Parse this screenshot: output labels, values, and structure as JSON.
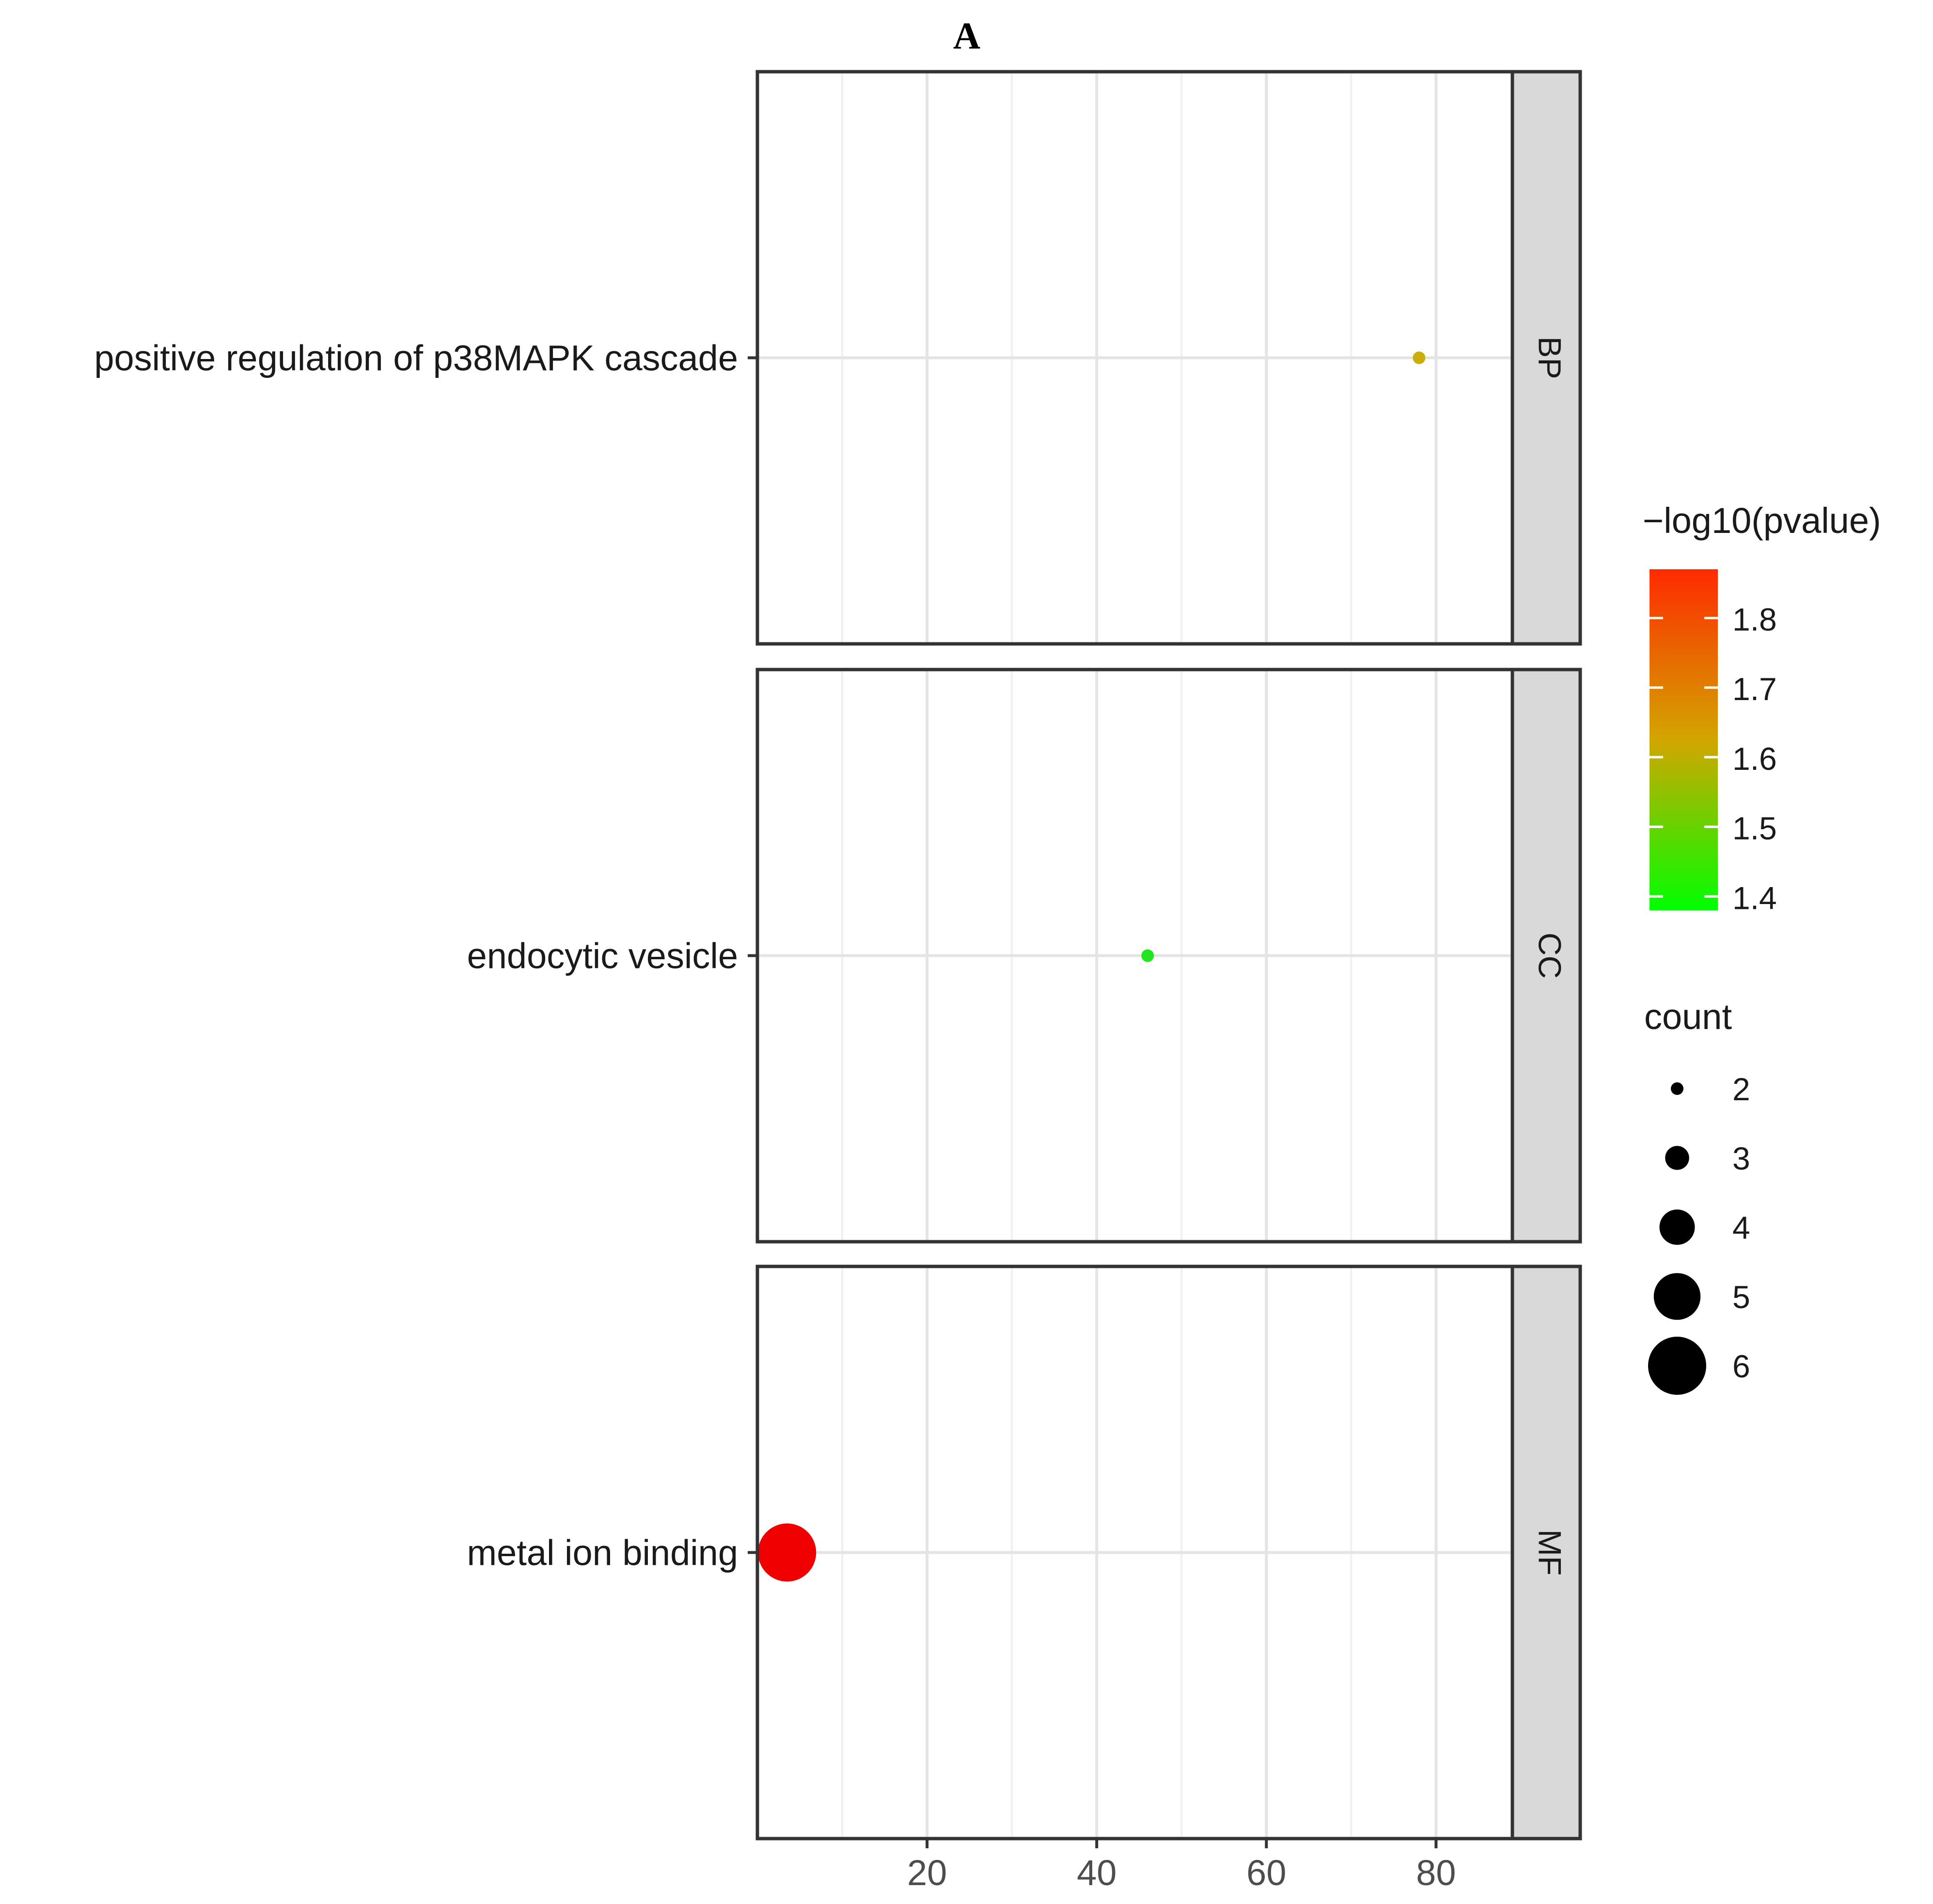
{
  "page": {
    "panel_label": "A"
  },
  "chart_data": {
    "type": "scatter",
    "title": "",
    "xlabel": "",
    "ylabel": "",
    "xlim": [
      0,
      89
    ],
    "x_ticks": [
      20,
      40,
      60,
      80
    ],
    "facets": [
      "BP",
      "CC",
      "MF"
    ],
    "grid": true,
    "legend_position": "right",
    "points": [
      {
        "facet": "BP",
        "category": "positive regulation of p38MAPK cascade",
        "x": 78,
        "count": 2,
        "neg_log10_pvalue": 1.62,
        "color": "#C9AE0C"
      },
      {
        "facet": "CC",
        "category": "endocytic vesicle",
        "x": 46,
        "count": 2,
        "neg_log10_pvalue": 1.4,
        "color": "#21E521"
      },
      {
        "facet": "MF",
        "category": "metal ion binding",
        "x": 3.5,
        "count": 6,
        "neg_log10_pvalue": 1.86,
        "color": "#F00000"
      }
    ],
    "color_legend": {
      "title": "−log10(pvalue)",
      "min": 1.38,
      "max": 1.87,
      "ticks": [
        1.8,
        1.7,
        1.6,
        1.5,
        1.4
      ],
      "low_color": "#00FF00",
      "mid_color": "#D2A500",
      "high_color": "#FF2A00"
    },
    "size_legend": {
      "title": "count",
      "values": [
        2,
        3,
        4,
        5,
        6
      ]
    }
  }
}
